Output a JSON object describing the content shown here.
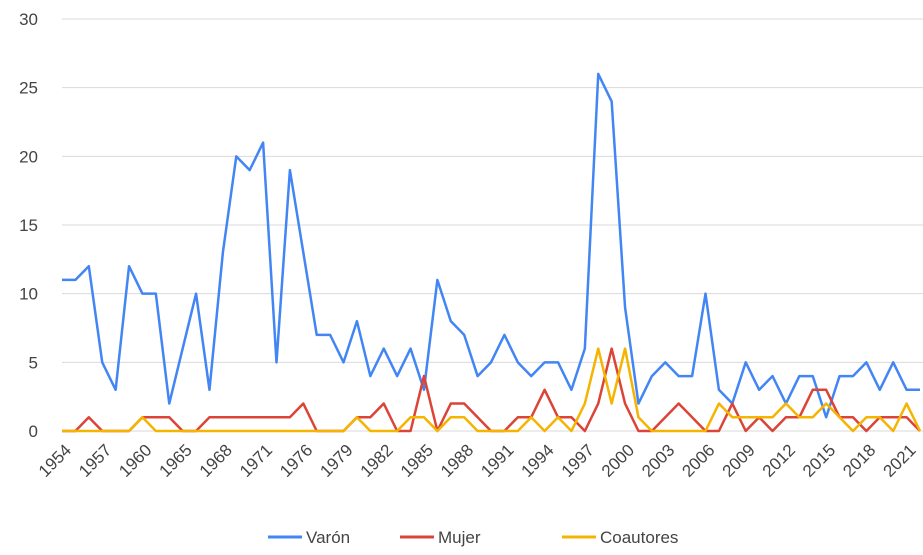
{
  "chart_data": {
    "type": "line",
    "categories": [
      "1954",
      null,
      null,
      "1957",
      null,
      null,
      "1960",
      null,
      null,
      "1965",
      null,
      null,
      "1968",
      null,
      null,
      "1971",
      null,
      null,
      "1976",
      null,
      null,
      "1979",
      null,
      null,
      "1982",
      null,
      null,
      "1985",
      null,
      null,
      "1988",
      null,
      null,
      "1991",
      null,
      null,
      "1994",
      null,
      null,
      "1997",
      null,
      null,
      "2000",
      null,
      null,
      "2003",
      null,
      null,
      "2006",
      null,
      null,
      "2009",
      null,
      null,
      "2012",
      null,
      null,
      "2015",
      null,
      null,
      "2018",
      null,
      null,
      "2021",
      null
    ],
    "series": [
      {
        "name": "Varón",
        "color": "#4285f4",
        "values": [
          11,
          11,
          12,
          5,
          3,
          12,
          10,
          10,
          2,
          6,
          10,
          3,
          13,
          20,
          19,
          21,
          5,
          19,
          13,
          7,
          7,
          5,
          8,
          4,
          6,
          4,
          6,
          3,
          11,
          8,
          7,
          4,
          5,
          7,
          5,
          4,
          5,
          5,
          3,
          6,
          26,
          24,
          9,
          2,
          4,
          5,
          4,
          4,
          10,
          3,
          2,
          5,
          3,
          4,
          2,
          4,
          4,
          1,
          4,
          4,
          5,
          3,
          5,
          3,
          3
        ]
      },
      {
        "name": "Mujer",
        "color": "#db4437",
        "values": [
          0,
          0,
          1,
          0,
          0,
          0,
          1,
          1,
          1,
          0,
          0,
          1,
          1,
          1,
          1,
          1,
          1,
          1,
          2,
          0,
          0,
          0,
          1,
          1,
          2,
          0,
          0,
          4,
          0,
          2,
          2,
          1,
          0,
          0,
          1,
          1,
          3,
          1,
          1,
          0,
          2,
          6,
          2,
          0,
          0,
          1,
          2,
          1,
          0,
          0,
          2,
          0,
          1,
          0,
          1,
          1,
          3,
          3,
          1,
          1,
          0,
          1,
          1,
          1,
          0
        ]
      },
      {
        "name": "Coautores",
        "color": "#f4b400",
        "values": [
          0,
          0,
          0,
          0,
          0,
          0,
          1,
          0,
          0,
          0,
          0,
          0,
          0,
          0,
          0,
          0,
          0,
          0,
          0,
          0,
          0,
          0,
          1,
          0,
          0,
          0,
          1,
          1,
          0,
          1,
          1,
          0,
          0,
          0,
          0,
          1,
          0,
          1,
          0,
          2,
          6,
          2,
          6,
          1,
          0,
          0,
          0,
          0,
          0,
          2,
          1,
          1,
          1,
          1,
          2,
          1,
          1,
          2,
          1,
          0,
          1,
          1,
          0,
          2,
          0
        ]
      }
    ],
    "ylim": [
      0,
      30
    ],
    "yticks": [
      0,
      5,
      10,
      15,
      20,
      25,
      30
    ],
    "grid": true,
    "legend": "bottom"
  }
}
